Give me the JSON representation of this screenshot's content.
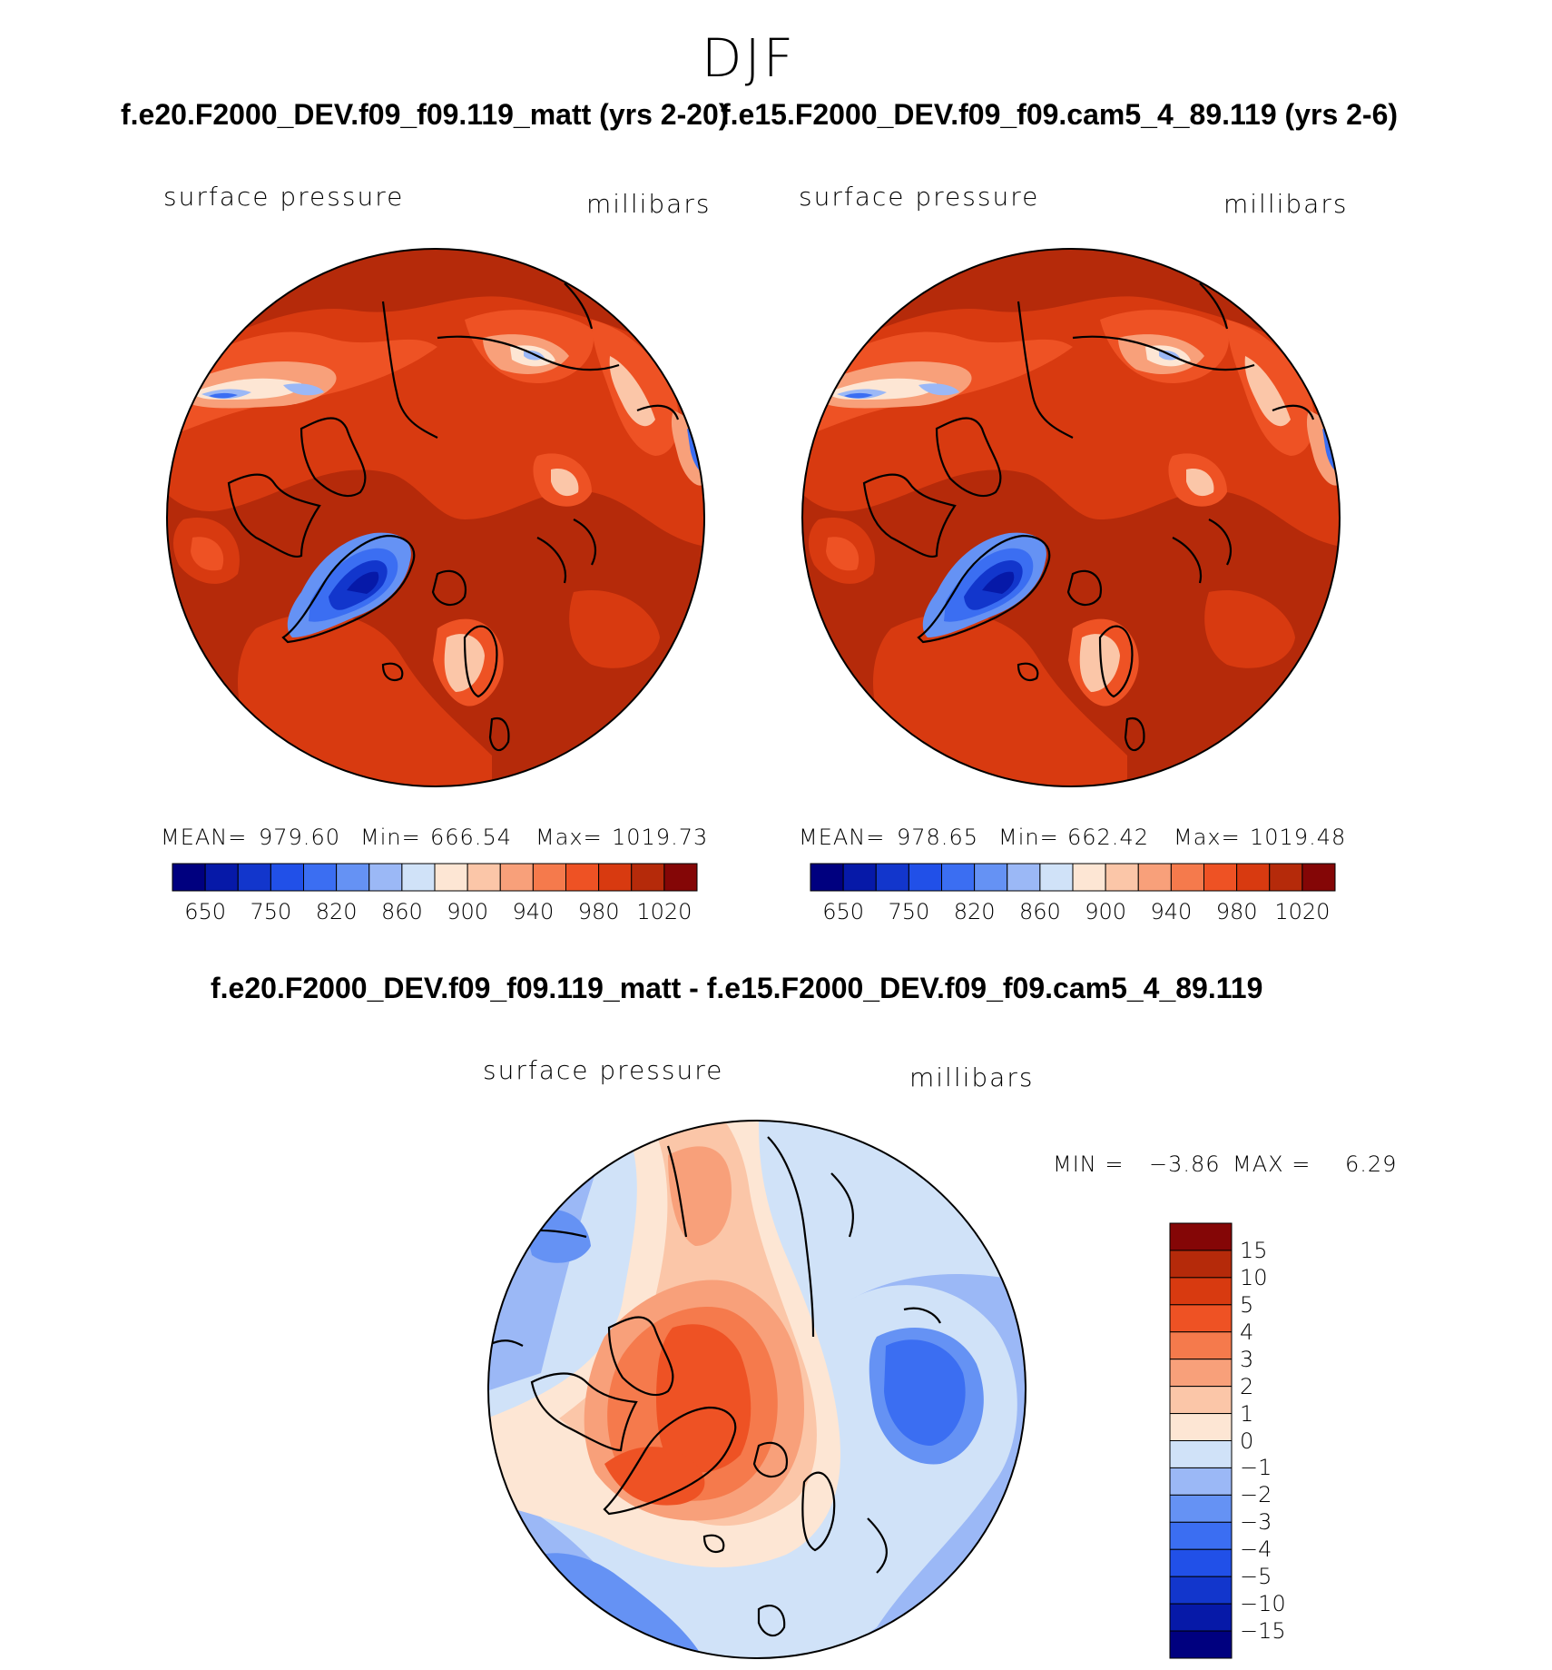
{
  "season": "DJF",
  "panels": [
    {
      "title": "f.e20.F2000_DEV.f09_f09.119_matt (yrs 2-20)",
      "variable": "surface pressure",
      "units": "millibars",
      "stats": {
        "mean_label": "MEAN=",
        "mean": "979.60",
        "min_label": "Min=",
        "min": "666.54",
        "max_label": "Max=",
        "max": "1019.73"
      }
    },
    {
      "title": "f.e15.F2000_DEV.f09_f09.cam5_4_89.119 (yrs 2-6)",
      "variable": "surface pressure",
      "units": "millibars",
      "stats": {
        "mean_label": "MEAN=",
        "mean": "978.65",
        "min_label": "Min=",
        "min": "662.42",
        "max_label": "Max=",
        "max": "1019.48"
      }
    }
  ],
  "diff_panel": {
    "title": "f.e20.F2000_DEV.f09_f09.119_matt - f.e15.F2000_DEV.f09_f09.cam5_4_89.119",
    "variable": "surface pressure",
    "units": "millibars",
    "min_label": "MIN =",
    "min": "−3.86",
    "max_label": "MAX =",
    "max": "6.29"
  },
  "abs_colorbar": {
    "colors": [
      "#00007f",
      "#0619a8",
      "#1236cc",
      "#2150e8",
      "#3b6ef2",
      "#6592f4",
      "#9bb8f6",
      "#d0e2f8",
      "#fde6d4",
      "#fbc6a8",
      "#f8a07a",
      "#f57a4c",
      "#ee5224",
      "#d83a10",
      "#b52a0a",
      "#840606"
    ],
    "tick_labels": [
      "650",
      "750",
      "820",
      "860",
      "900",
      "940",
      "980",
      "1020"
    ]
  },
  "diff_colorbar": {
    "colors_top_to_bottom": [
      "#840606",
      "#b52a0a",
      "#d83a10",
      "#ee5224",
      "#f57a4c",
      "#f8a07a",
      "#fbc6a8",
      "#fde6d4",
      "#d0e2f8",
      "#9bb8f6",
      "#6592f4",
      "#3b6ef2",
      "#2150e8",
      "#1236cc",
      "#0619a8",
      "#00007f"
    ],
    "tick_labels": [
      "15",
      "10",
      "5",
      "4",
      "3",
      "2",
      "1",
      "0",
      "−1",
      "−2",
      "−3",
      "−4",
      "−5",
      "−10",
      "−15"
    ]
  }
}
